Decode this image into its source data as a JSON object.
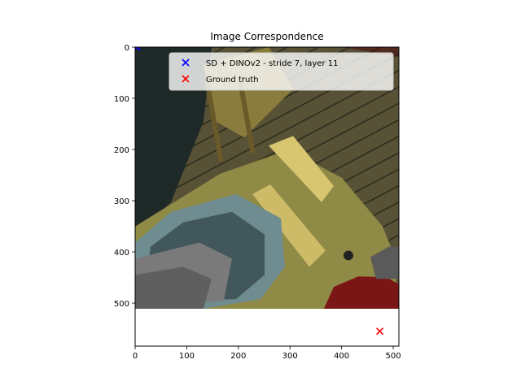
{
  "chart_data": {
    "type": "scatter",
    "title": "Image Correspondence",
    "xlabel": "",
    "ylabel": "",
    "xlim": [
      0,
      511
    ],
    "ylim": [
      584,
      0
    ],
    "image_extent": {
      "x": [
        0,
        511
      ],
      "y": [
        0,
        511
      ]
    },
    "xticks": [
      0,
      100,
      200,
      300,
      400,
      500
    ],
    "yticks": [
      0,
      100,
      200,
      300,
      400,
      500
    ],
    "grid": false,
    "legend_position": "top-right",
    "series": [
      {
        "name": "SD + DINOv2 - stride 7, layer 11",
        "marker": "x",
        "color": "#0000ff",
        "points": [
          {
            "x": 4,
            "y": 0
          }
        ]
      },
      {
        "name": "Ground truth",
        "marker": "x",
        "color": "#ff0000",
        "points": [
          {
            "x": 474,
            "y": 555
          }
        ]
      }
    ]
  }
}
